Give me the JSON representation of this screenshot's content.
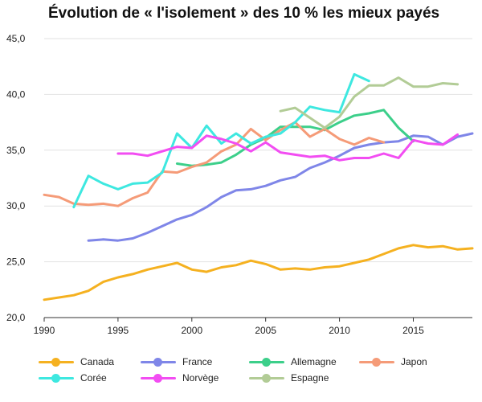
{
  "chart_data": {
    "type": "line",
    "title": "Évolution de « l'isolement » des 10 % les mieux payés",
    "xlabel": "",
    "ylabel": "",
    "xlim": [
      1990,
      2019
    ],
    "ylim": [
      20,
      45
    ],
    "x_ticks": [
      1990,
      1995,
      2000,
      2005,
      2010,
      2015
    ],
    "y_ticks": [
      20,
      25,
      30,
      35,
      40,
      45
    ],
    "y_tick_labels": [
      "20,0",
      "25,0",
      "30,0",
      "35,0",
      "40,0",
      "45,0"
    ],
    "grid": true,
    "legend_position": "bottom",
    "series": [
      {
        "name": "Canada",
        "color": "#f5b120",
        "x": [
          1990,
          1991,
          1992,
          1993,
          1994,
          1995,
          1996,
          1997,
          1998,
          1999,
          2000,
          2001,
          2002,
          2003,
          2004,
          2005,
          2006,
          2007,
          2008,
          2009,
          2010,
          2011,
          2012,
          2013,
          2014,
          2015,
          2016,
          2017,
          2018,
          2019
        ],
        "values": [
          21.6,
          21.8,
          22.0,
          22.4,
          23.2,
          23.6,
          23.9,
          24.3,
          24.6,
          24.9,
          24.3,
          24.1,
          24.5,
          24.7,
          25.1,
          24.8,
          24.3,
          24.4,
          24.3,
          24.5,
          24.6,
          24.9,
          25.2,
          25.7,
          26.2,
          26.5,
          26.3,
          26.4,
          26.1,
          26.2
        ]
      },
      {
        "name": "France",
        "color": "#7f86e8",
        "x": [
          1993,
          1994,
          1995,
          1996,
          1997,
          1998,
          1999,
          2000,
          2001,
          2002,
          2003,
          2004,
          2005,
          2006,
          2007,
          2008,
          2009,
          2010,
          2011,
          2012,
          2013,
          2014,
          2015,
          2016,
          2017,
          2018,
          2019
        ],
        "values": [
          26.9,
          27.0,
          26.9,
          27.1,
          27.6,
          28.2,
          28.8,
          29.2,
          29.9,
          30.8,
          31.4,
          31.5,
          31.8,
          32.3,
          32.6,
          33.4,
          33.9,
          34.5,
          35.2,
          35.5,
          35.7,
          35.8,
          36.3,
          36.2,
          35.5,
          36.2,
          36.5
        ]
      },
      {
        "name": "Allemagne",
        "color": "#3ccf8a",
        "x": [
          1999,
          2000,
          2001,
          2002,
          2003,
          2004,
          2005,
          2006,
          2007,
          2008,
          2009,
          2010,
          2011,
          2012,
          2013,
          2014,
          2015
        ],
        "values": [
          33.8,
          33.6,
          33.7,
          33.9,
          34.6,
          35.5,
          36.1,
          37.1,
          37.1,
          37.1,
          36.8,
          37.5,
          38.1,
          38.3,
          38.6,
          37.0,
          35.8
        ]
      },
      {
        "name": "Japon",
        "color": "#f59b78",
        "x": [
          1990,
          1991,
          1992,
          1993,
          1994,
          1995,
          1996,
          1997,
          1998,
          1999,
          2000,
          2001,
          2002,
          2003,
          2004,
          2005,
          2006,
          2007,
          2008,
          2009,
          2010,
          2011,
          2012,
          2013
        ],
        "values": [
          31.0,
          30.8,
          30.2,
          30.1,
          30.2,
          30.0,
          30.7,
          31.2,
          33.1,
          33.0,
          33.5,
          33.9,
          34.9,
          35.5,
          36.9,
          35.9,
          36.8,
          37.5,
          36.2,
          36.9,
          36.0,
          35.5,
          36.1,
          35.7
        ]
      },
      {
        "name": "Corée",
        "color": "#3ee8e0",
        "x": [
          1992,
          1993,
          1994,
          1995,
          1996,
          1997,
          1998,
          1999,
          2000,
          2001,
          2002,
          2003,
          2004,
          2005,
          2006,
          2007,
          2008,
          2009,
          2010,
          2011,
          2012
        ],
        "values": [
          29.9,
          32.7,
          32.0,
          31.5,
          32.0,
          32.1,
          33.0,
          36.5,
          35.2,
          37.2,
          35.6,
          36.5,
          35.6,
          36.2,
          36.5,
          37.5,
          38.9,
          38.6,
          38.4,
          41.8,
          41.2
        ]
      },
      {
        "name": "Norvège",
        "color": "#f24df2",
        "x": [
          1995,
          1996,
          1997,
          1998,
          1999,
          2000,
          2001,
          2002,
          2003,
          2004,
          2005,
          2006,
          2007,
          2008,
          2009,
          2010,
          2011,
          2012,
          2013,
          2014,
          2015,
          2016,
          2017,
          2018
        ],
        "values": [
          34.7,
          34.7,
          34.5,
          34.9,
          35.3,
          35.2,
          36.3,
          36.0,
          35.6,
          34.9,
          35.7,
          34.8,
          34.6,
          34.4,
          34.5,
          34.1,
          34.3,
          34.3,
          34.7,
          34.3,
          35.9,
          35.6,
          35.5,
          36.4
        ]
      },
      {
        "name": "Espagne",
        "color": "#b2cc96",
        "x": [
          2006,
          2007,
          2008,
          2009,
          2010,
          2011,
          2012,
          2013,
          2014,
          2015,
          2016,
          2017,
          2018
        ],
        "values": [
          38.5,
          38.8,
          37.9,
          37.0,
          38.0,
          39.8,
          40.8,
          40.8,
          41.5,
          40.7,
          40.7,
          41.0,
          40.9
        ]
      }
    ]
  }
}
